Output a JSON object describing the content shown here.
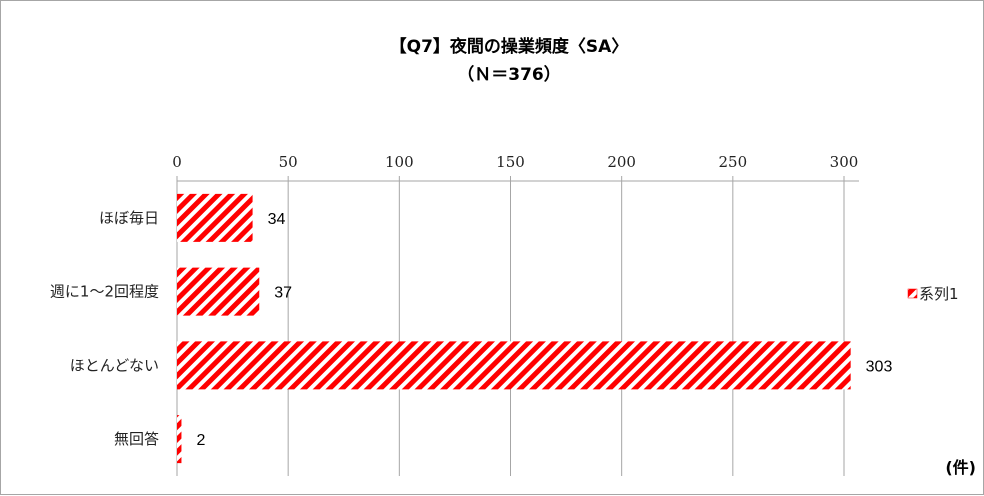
{
  "chart_data": {
    "type": "bar",
    "orientation": "horizontal",
    "title": "【Q7】夜間の操業頻度〈SA〉",
    "subtitle": "（Ｎ＝376）",
    "categories": [
      "ほぼ毎日",
      "週に1～2回程度",
      "ほとんどない",
      "無回答"
    ],
    "series": [
      {
        "name": "系列1",
        "values": [
          34,
          37,
          303,
          2
        ]
      }
    ],
    "xlim": [
      0,
      310
    ],
    "x_ticks": [
      0,
      50,
      100,
      150,
      200,
      250,
      300
    ],
    "x_axis_position": "top",
    "grid": true,
    "legend": "right",
    "unit_label": "(件)",
    "bar_color": "#ff0000",
    "bar_pattern": "diagonal-stripes"
  }
}
